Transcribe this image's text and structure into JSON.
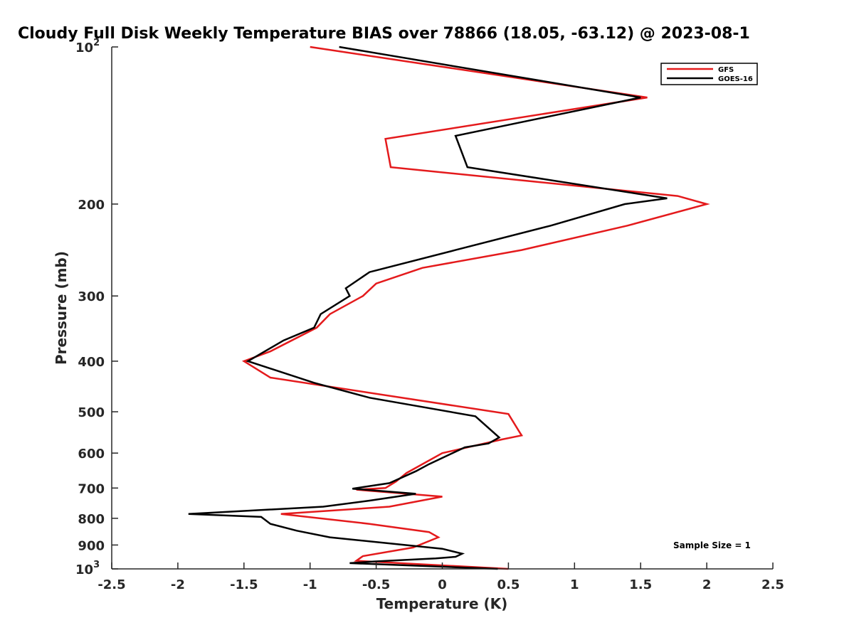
{
  "chart_data": {
    "type": "line",
    "title": "Cloudy Full Disk Weekly Temperature BIAS over 78866 (18.05, -63.12) @ 2023-08-1",
    "xlabel": "Temperature (K)",
    "ylabel": "Pressure (mb)",
    "xlim": [
      -2.5,
      2.5
    ],
    "ylim": [
      100,
      1000
    ],
    "y_scale": "log",
    "y_reversed": true,
    "grid": false,
    "legend_position": "top-right",
    "x_ticks": [
      -2.5,
      -2,
      -1.5,
      -1,
      -0.5,
      0,
      0.5,
      1,
      1.5,
      2,
      2.5
    ],
    "x_tick_labels": [
      "-2.5",
      "-2",
      "-1.5",
      "-1",
      "-0.5",
      "0",
      "0.5",
      "1",
      "1.5",
      "2",
      "2.5"
    ],
    "y_ticks": [
      100,
      200,
      300,
      400,
      500,
      600,
      700,
      800,
      900,
      1000
    ],
    "y_tick_labels": [
      "10^2",
      "200",
      "300",
      "400",
      "500",
      "600",
      "700",
      "800",
      "900",
      "10^3"
    ],
    "series": [
      {
        "name": "GFS",
        "color": "#e41a1c",
        "points": [
          [
            -1.0,
            100
          ],
          [
            1.55,
            125
          ],
          [
            -0.43,
            150
          ],
          [
            -0.39,
            170
          ],
          [
            1.78,
            193
          ],
          [
            2.0,
            200
          ],
          [
            1.4,
            220
          ],
          [
            0.6,
            245
          ],
          [
            -0.15,
            265
          ],
          [
            -0.5,
            284
          ],
          [
            -0.6,
            300
          ],
          [
            -0.85,
            325
          ],
          [
            -0.95,
            345
          ],
          [
            -1.3,
            383
          ],
          [
            -1.5,
            400
          ],
          [
            -1.3,
            430
          ],
          [
            0.5,
            505
          ],
          [
            0.58,
            545
          ],
          [
            0.6,
            555
          ],
          [
            0.45,
            565
          ],
          [
            0,
            600
          ],
          [
            -0.27,
            655
          ],
          [
            -0.35,
            680
          ],
          [
            -0.43,
            700
          ],
          [
            -0.65,
            705
          ],
          [
            0.0,
            727
          ],
          [
            -0.4,
            760
          ],
          [
            -1.22,
            785
          ],
          [
            -0.55,
            820
          ],
          [
            -0.1,
            850
          ],
          [
            -0.03,
            870
          ],
          [
            -0.22,
            910
          ],
          [
            -0.6,
            945
          ],
          [
            -0.65,
            965
          ],
          [
            0.5,
            1000
          ]
        ]
      },
      {
        "name": "GOES-16",
        "color": "#000000",
        "points": [
          [
            -0.78,
            100
          ],
          [
            1.5,
            125
          ],
          [
            0.1,
            148
          ],
          [
            0.19,
            170
          ],
          [
            1.7,
            195
          ],
          [
            1.38,
            200
          ],
          [
            0.82,
            220
          ],
          [
            0.1,
            245
          ],
          [
            -0.55,
            270
          ],
          [
            -0.73,
            290
          ],
          [
            -0.7,
            300
          ],
          [
            -0.92,
            325
          ],
          [
            -0.97,
            345
          ],
          [
            -1.2,
            365
          ],
          [
            -1.47,
            400
          ],
          [
            -0.97,
            440
          ],
          [
            -0.55,
            470
          ],
          [
            0.25,
            510
          ],
          [
            0.43,
            560
          ],
          [
            0.35,
            575
          ],
          [
            0.17,
            585
          ],
          [
            -0.1,
            630
          ],
          [
            -0.2,
            650
          ],
          [
            -0.4,
            685
          ],
          [
            -0.68,
            702
          ],
          [
            -0.2,
            718
          ],
          [
            -0.55,
            740
          ],
          [
            -0.9,
            760
          ],
          [
            -1.92,
            785
          ],
          [
            -1.37,
            795
          ],
          [
            -1.3,
            820
          ],
          [
            -1.1,
            845
          ],
          [
            -0.85,
            870
          ],
          [
            0.0,
            915
          ],
          [
            0.15,
            935
          ],
          [
            0.1,
            948
          ],
          [
            -0.05,
            955
          ],
          [
            -0.52,
            968
          ],
          [
            -0.7,
            975
          ],
          [
            0.42,
            1000
          ]
        ]
      }
    ],
    "annotations": [
      "Sample Size = 1"
    ]
  }
}
